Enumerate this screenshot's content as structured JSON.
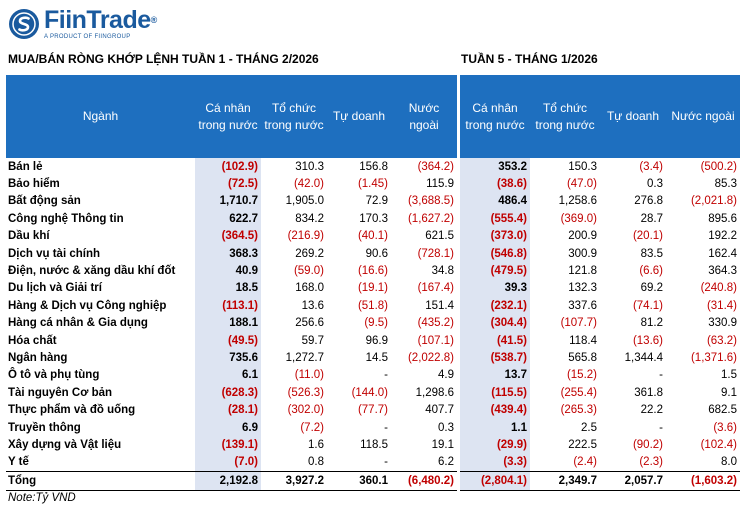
{
  "brand": {
    "name": "FiinTrade",
    "registered": "®",
    "tagline": "A PRODUCT OF FIINGROUP"
  },
  "titles": {
    "left": "MUA/BÁN RÒNG KHỚP LỆNH TUẦN 1 - THÁNG 2/2026",
    "right": "TUẦN 5 - THÁNG 1/2026"
  },
  "headers": {
    "sector": "Ngành",
    "left": [
      "Cá nhân trong nước",
      "Tổ chức trong nước",
      "Tự doanh",
      "Nước ngoài"
    ],
    "right": [
      "Cá nhân trong nước",
      "Tổ chức trong nước",
      "Tự doanh",
      "Nước ngoài"
    ]
  },
  "note": "Note:Tỷ VND",
  "colors": {
    "header_bg": "#1e6fbf",
    "highlight_bg": "#dde4f2",
    "negative": "#c00000"
  },
  "chart_data": {
    "type": "table",
    "title": "MUA/BÁN RÒNG KHỚP LỆNH TUẦN 1 - THÁNG 2/2026",
    "unit": "Tỷ VND",
    "rows": [
      {
        "sector": "Bán lẻ",
        "w1": [
          "(102.9)",
          "310.3",
          "156.8",
          "(364.2)"
        ],
        "w5": [
          "353.2",
          "150.3",
          "(3.4)",
          "(500.2)"
        ]
      },
      {
        "sector": "Bảo hiểm",
        "w1": [
          "(72.5)",
          "(42.0)",
          "(1.45)",
          "115.9"
        ],
        "w5": [
          "(38.6)",
          "(47.0)",
          "0.3",
          "85.3"
        ]
      },
      {
        "sector": "Bất động sản",
        "w1": [
          "1,710.7",
          "1,905.0",
          "72.9",
          "(3,688.5)"
        ],
        "w5": [
          "486.4",
          "1,258.6",
          "276.8",
          "(2,021.8)"
        ]
      },
      {
        "sector": "Công nghệ Thông tin",
        "w1": [
          "622.7",
          "834.2",
          "170.3",
          "(1,627.2)"
        ],
        "w5": [
          "(555.4)",
          "(369.0)",
          "28.7",
          "895.6"
        ]
      },
      {
        "sector": "Dầu khí",
        "w1": [
          "(364.5)",
          "(216.9)",
          "(40.1)",
          "621.5"
        ],
        "w5": [
          "(373.0)",
          "200.9",
          "(20.1)",
          "192.2"
        ]
      },
      {
        "sector": "Dịch vụ tài chính",
        "w1": [
          "368.3",
          "269.2",
          "90.6",
          "(728.1)"
        ],
        "w5": [
          "(546.8)",
          "300.9",
          "83.5",
          "162.4"
        ]
      },
      {
        "sector": "Điện, nước & xăng dầu khí đốt",
        "w1": [
          "40.9",
          "(59.0)",
          "(16.6)",
          "34.8"
        ],
        "w5": [
          "(479.5)",
          "121.8",
          "(6.6)",
          "364.3"
        ]
      },
      {
        "sector": "Du lịch và Giải trí",
        "w1": [
          "18.5",
          "168.0",
          "(19.1)",
          "(167.4)"
        ],
        "w5": [
          "39.3",
          "132.3",
          "69.2",
          "(240.8)"
        ]
      },
      {
        "sector": "Hàng & Dịch vụ Công nghiệp",
        "w1": [
          "(113.1)",
          "13.6",
          "(51.8)",
          "151.4"
        ],
        "w5": [
          "(232.1)",
          "337.6",
          "(74.1)",
          "(31.4)"
        ]
      },
      {
        "sector": "Hàng cá nhân & Gia dụng",
        "w1": [
          "188.1",
          "256.6",
          "(9.5)",
          "(435.2)"
        ],
        "w5": [
          "(304.4)",
          "(107.7)",
          "81.2",
          "330.9"
        ]
      },
      {
        "sector": "Hóa chất",
        "w1": [
          "(49.5)",
          "59.7",
          "96.9",
          "(107.1)"
        ],
        "w5": [
          "(41.5)",
          "118.4",
          "(13.6)",
          "(63.2)"
        ]
      },
      {
        "sector": "Ngân hàng",
        "w1": [
          "735.6",
          "1,272.7",
          "14.5",
          "(2,022.8)"
        ],
        "w5": [
          "(538.7)",
          "565.8",
          "1,344.4",
          "(1,371.6)"
        ]
      },
      {
        "sector": "Ô tô và phụ tùng",
        "w1": [
          "6.1",
          "(11.0)",
          "-",
          "4.9"
        ],
        "w5": [
          "13.7",
          "(15.2)",
          "-",
          "1.5"
        ]
      },
      {
        "sector": "Tài nguyên Cơ bản",
        "w1": [
          "(628.3)",
          "(526.3)",
          "(144.0)",
          "1,298.6"
        ],
        "w5": [
          "(115.5)",
          "(255.4)",
          "361.8",
          "9.1"
        ]
      },
      {
        "sector": "Thực phẩm và đồ uống",
        "w1": [
          "(28.1)",
          "(302.0)",
          "(77.7)",
          "407.7"
        ],
        "w5": [
          "(439.4)",
          "(265.3)",
          "22.2",
          "682.5"
        ]
      },
      {
        "sector": "Truyền thông",
        "w1": [
          "6.9",
          "(7.2)",
          "-",
          "0.3"
        ],
        "w5": [
          "1.1",
          "2.5",
          "-",
          "(3.6)"
        ]
      },
      {
        "sector": "Xây dựng và Vật liệu",
        "w1": [
          "(139.1)",
          "1.6",
          "118.5",
          "19.1"
        ],
        "w5": [
          "(29.9)",
          "222.5",
          "(90.2)",
          "(102.4)"
        ]
      },
      {
        "sector": "Y tế",
        "w1": [
          "(7.0)",
          "0.8",
          "-",
          "6.2"
        ],
        "w5": [
          "(3.3)",
          "(2.4)",
          "(2.3)",
          "8.0"
        ]
      }
    ],
    "total": {
      "sector": "Tổng",
      "w1": [
        "2,192.8",
        "3,927.2",
        "360.1",
        "(6,480.2)"
      ],
      "w5": [
        "(2,804.1)",
        "2,349.7",
        "2,057.7",
        "(1,603.2)"
      ]
    }
  }
}
